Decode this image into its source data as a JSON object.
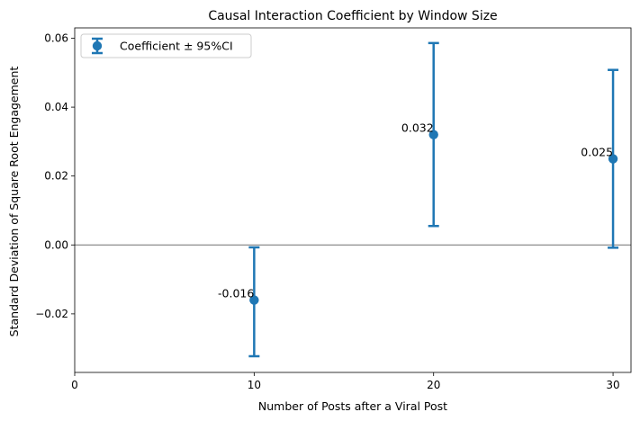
{
  "chart_data": {
    "type": "errorbar",
    "title": "Causal Interaction Coefficient by Window Size",
    "xlabel": "Number of Posts after a Viral Post",
    "ylabel": "Standard Deviation of Square Root Engagement",
    "xlim": [
      0,
      31
    ],
    "ylim": [
      -0.037,
      0.063
    ],
    "xticks": [
      0,
      10,
      20,
      30
    ],
    "xtick_labels": [
      "0",
      "10",
      "20",
      "30"
    ],
    "yticks": [
      -0.02,
      0,
      0.02,
      0.04,
      0.06
    ],
    "ytick_labels": [
      "−0.02",
      "0.00",
      "0.02",
      "0.04",
      "0.06"
    ],
    "grid": false,
    "legend": {
      "position": "top-left",
      "entries": [
        "Coefficient ± 95%CI"
      ]
    },
    "reference_line": {
      "y": 0,
      "color": "#808080"
    },
    "series": [
      {
        "name": "Coefficient ± 95%CI",
        "color": "#1f77b4",
        "x": [
          10,
          20,
          30
        ],
        "y": [
          -0.016,
          0.032,
          0.025
        ],
        "ci_low": [
          -0.0323,
          0.0055,
          -0.0008
        ],
        "ci_high": [
          -0.0007,
          0.0586,
          0.0508
        ],
        "point_labels": [
          "-0.016",
          "0.032",
          "0.025"
        ]
      }
    ]
  }
}
